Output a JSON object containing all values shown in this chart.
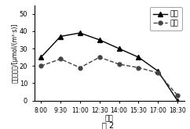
{
  "x_labels": [
    "8:00",
    "9:30",
    "11:00",
    "12:30",
    "14:00",
    "15:30",
    "17:00",
    "18:30"
  ],
  "corn_values": [
    25,
    37,
    39,
    35,
    30,
    25,
    17,
    0
  ],
  "wheat_values": [
    20,
    24,
    19,
    25,
    21,
    19,
    16,
    3
  ],
  "corn_label": "珉米",
  "wheat_label": "小麦",
  "ylabel_parts": [
    "净光合速率/μmol/(m",
    "²",
    "·s)"
  ],
  "ylabel_full": "净光合速率/[μmol/(m²·s)]",
  "xlabel": "时间",
  "caption": "图 2",
  "ylim": [
    0,
    55
  ],
  "yticks": [
    0,
    10,
    20,
    30,
    40,
    50
  ],
  "corn_color": "#000000",
  "wheat_color": "#444444",
  "background_color": "#ffffff",
  "fig_width": 2.42,
  "fig_height": 1.65
}
